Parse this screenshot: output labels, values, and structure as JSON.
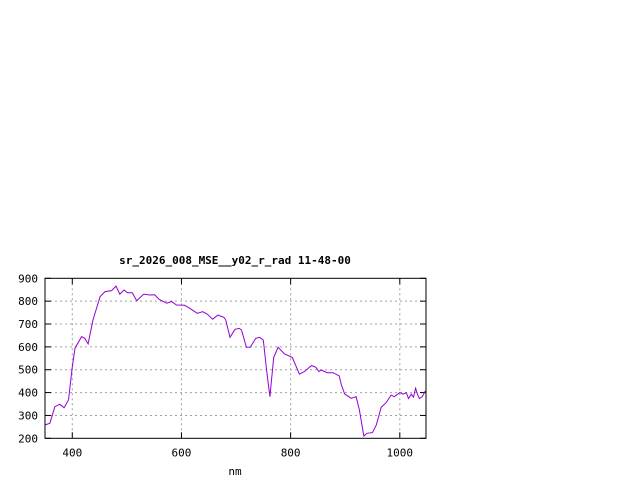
{
  "chart_data": {
    "type": "line",
    "title": "sr_2026_008_MSE__y02_r_rad 11-48-00",
    "xlabel": "nm",
    "ylabel": "",
    "xlim": [
      350,
      1048
    ],
    "ylim": [
      200,
      900
    ],
    "xticks": [
      400,
      600,
      800,
      1000
    ],
    "yticks": [
      200,
      300,
      400,
      500,
      600,
      700,
      800,
      900
    ],
    "grid": true,
    "line_color": "#9400d3",
    "series": [
      {
        "x": [
          350,
          359,
          368,
          377,
          385,
          393,
          400,
          405,
          417,
          423,
          429,
          438,
          451,
          460,
          472,
          480,
          487,
          495,
          501,
          510,
          518,
          531,
          542,
          551,
          559,
          573,
          582,
          591,
          606,
          615,
          629,
          639,
          647,
          657,
          667,
          678,
          681,
          689,
          698,
          706,
          710,
          719,
          726,
          736,
          743,
          750,
          756,
          762,
          769,
          777,
          789,
          803,
          816,
          825,
          838,
          846,
          852,
          856,
          867,
          878,
          889,
          893,
          899,
          911,
          920,
          926,
          934,
          940,
          950,
          957,
          966,
          975,
          984,
          990,
          1000,
          1006,
          1012,
          1016,
          1021,
          1025,
          1029,
          1033,
          1036,
          1041,
          1047
        ],
        "y": [
          258,
          266,
          338,
          349,
          334,
          368,
          513,
          594,
          645,
          637,
          613,
          718,
          820,
          842,
          846,
          866,
          831,
          849,
          837,
          837,
          802,
          831,
          827,
          828,
          808,
          791,
          798,
          783,
          782,
          769,
          747,
          754,
          744,
          721,
          739,
          729,
          718,
          642,
          677,
          681,
          674,
          598,
          598,
          637,
          642,
          630,
          499,
          382,
          554,
          598,
          569,
          554,
          481,
          492,
          518,
          511,
          492,
          499,
          487,
          487,
          473,
          433,
          394,
          375,
          382,
          324,
          210,
          222,
          225,
          258,
          336,
          356,
          389,
          382,
          400,
          393,
          400,
          374,
          393,
          380,
          419,
          389,
          374,
          382,
          408
        ]
      }
    ]
  }
}
